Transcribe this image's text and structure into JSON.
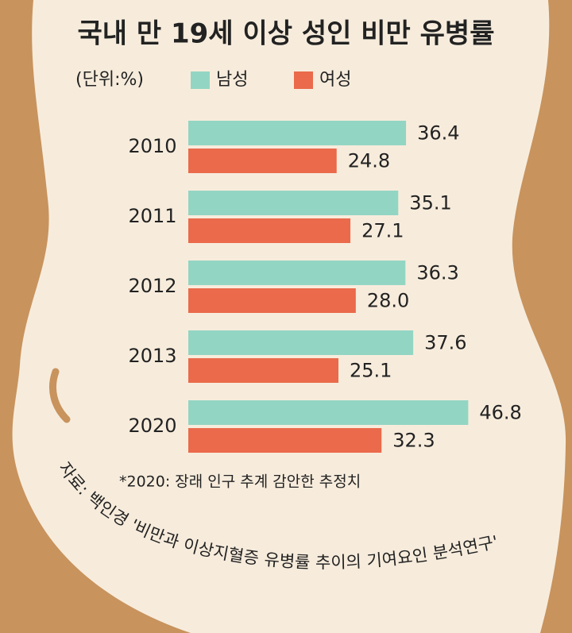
{
  "chart_data": {
    "type": "bar",
    "orientation": "horizontal",
    "title": "국내 만 19세 이상 성인 비만 유병률",
    "unit_label": "(단위:%)",
    "categories": [
      "2010",
      "2011",
      "2012",
      "2013",
      "2020"
    ],
    "series": [
      {
        "name": "남성",
        "color": "#93d5c3",
        "values": [
          36.4,
          35.1,
          36.3,
          37.6,
          46.8
        ],
        "value_labels": [
          "36.4",
          "35.1",
          "36.3",
          "37.6",
          "46.8"
        ]
      },
      {
        "name": "여성",
        "color": "#ea6a4b",
        "values": [
          24.8,
          27.1,
          28.0,
          25.1,
          32.3
        ],
        "value_labels": [
          "24.8",
          "27.1",
          "28.0",
          "25.1",
          "32.3"
        ]
      }
    ],
    "note": "*2020: 장래 인구 추계 감안한 추정치",
    "source": "자료: 백인경 '비만과 이상지혈증 유병률 추이의 기여요인 분석연구'"
  }
}
